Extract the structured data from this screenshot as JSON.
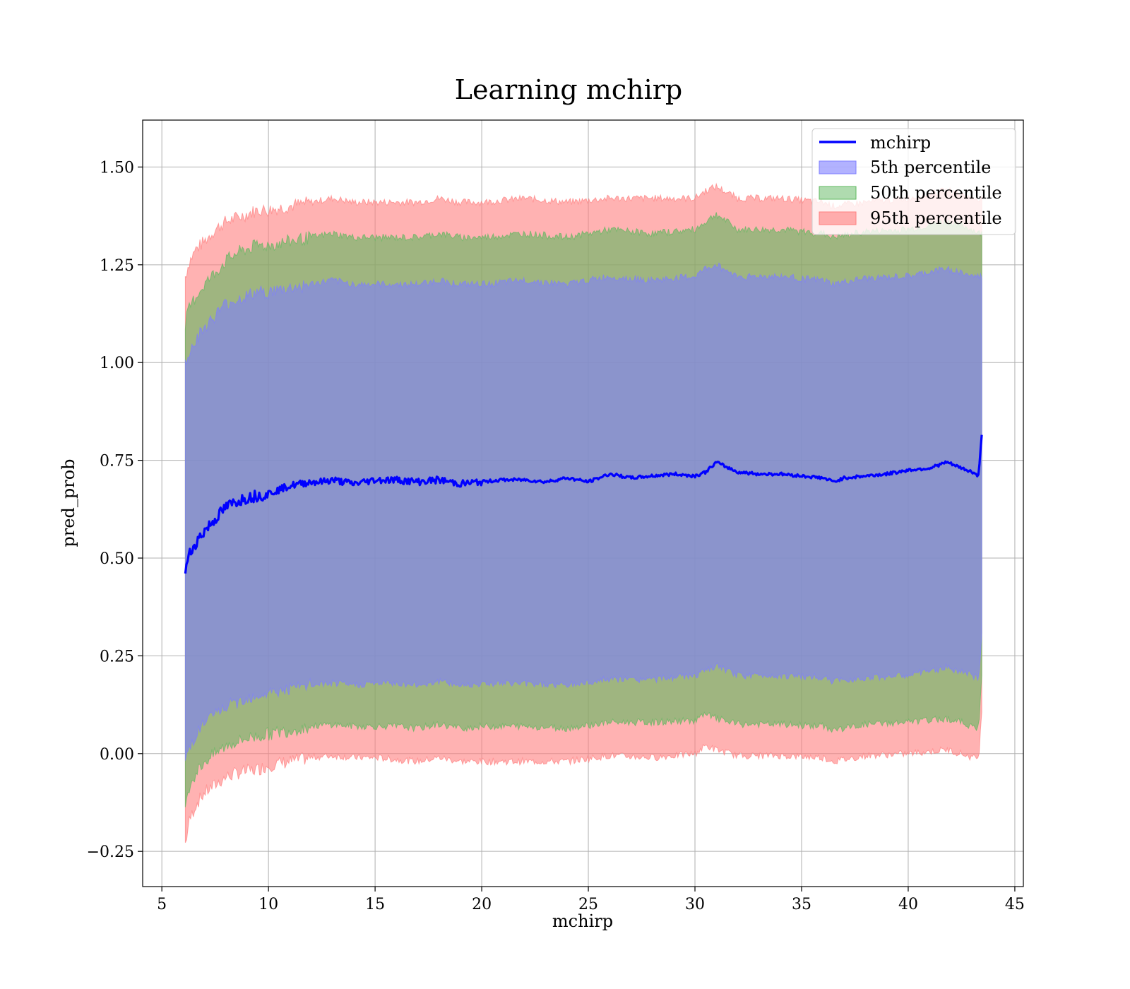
{
  "chart_data": {
    "type": "area",
    "title": "Learning mchirp",
    "xlabel": "mchirp",
    "ylabel": "pred_prob",
    "xlim": [
      4.1,
      45.4
    ],
    "ylim": [
      -0.34,
      1.62
    ],
    "xticks": [
      5,
      10,
      15,
      20,
      25,
      30,
      35,
      40,
      45
    ],
    "xtick_labels": [
      "5",
      "10",
      "15",
      "20",
      "25",
      "30",
      "35",
      "40",
      "45"
    ],
    "yticks": [
      -0.25,
      0.0,
      0.25,
      0.5,
      0.75,
      1.0,
      1.25,
      1.5
    ],
    "ytick_labels": [
      "−0.25",
      "0.00",
      "0.25",
      "0.50",
      "0.75",
      "1.00",
      "1.25",
      "1.50"
    ],
    "grid": true,
    "legend_position": "top-right",
    "series": [
      {
        "name": "mchirp",
        "kind": "line",
        "color": "#0000ff",
        "x": [
          6.1,
          6.3,
          6.6,
          7.0,
          7.5,
          8.0,
          8.5,
          9.0,
          9.5,
          10.0,
          10.5,
          11.0,
          11.5,
          12.0,
          12.5,
          13.0,
          13.5,
          14.0,
          15.0,
          16.0,
          17.0,
          18.0,
          19.0,
          20.0,
          21.0,
          22.0,
          23.0,
          24.0,
          25.0,
          26.0,
          27.0,
          28.0,
          29.0,
          30.0,
          30.5,
          31.0,
          32.0,
          33.0,
          34.0,
          35.0,
          36.0,
          36.5,
          37.0,
          38.0,
          39.0,
          40.0,
          41.0,
          41.8,
          42.5,
          43.0,
          43.3,
          43.45
        ],
        "y": [
          0.47,
          0.51,
          0.54,
          0.57,
          0.6,
          0.63,
          0.645,
          0.655,
          0.66,
          0.665,
          0.675,
          0.685,
          0.69,
          0.695,
          0.695,
          0.7,
          0.695,
          0.69,
          0.7,
          0.7,
          0.695,
          0.7,
          0.69,
          0.695,
          0.7,
          0.7,
          0.695,
          0.705,
          0.695,
          0.715,
          0.705,
          0.71,
          0.715,
          0.71,
          0.72,
          0.745,
          0.72,
          0.715,
          0.715,
          0.71,
          0.705,
          0.695,
          0.705,
          0.71,
          0.715,
          0.725,
          0.73,
          0.745,
          0.73,
          0.72,
          0.71,
          0.815
        ]
      },
      {
        "name": "5th percentile",
        "kind": "band",
        "color": "#7f7fff",
        "x": [
          6.1,
          6.3,
          6.6,
          7.0,
          7.5,
          8.0,
          8.5,
          9.0,
          9.5,
          10.0,
          11.0,
          12.0,
          13.0,
          14.0,
          15.0,
          16.0,
          17.0,
          18.0,
          19.0,
          20.0,
          22.0,
          24.0,
          26.0,
          28.0,
          30.0,
          30.5,
          31.0,
          32.0,
          34.0,
          36.0,
          36.5,
          38.0,
          40.0,
          41.8,
          42.5,
          43.0,
          43.3,
          43.45
        ],
        "lower": [
          -0.02,
          0.02,
          0.05,
          0.08,
          0.1,
          0.12,
          0.13,
          0.145,
          0.15,
          0.155,
          0.165,
          0.175,
          0.18,
          0.175,
          0.18,
          0.18,
          0.175,
          0.185,
          0.175,
          0.18,
          0.18,
          0.175,
          0.19,
          0.19,
          0.2,
          0.21,
          0.225,
          0.2,
          0.2,
          0.195,
          0.185,
          0.195,
          0.2,
          0.22,
          0.21,
          0.2,
          0.19,
          0.3
        ],
        "upper": [
          1.0,
          1.03,
          1.06,
          1.09,
          1.12,
          1.15,
          1.16,
          1.17,
          1.18,
          1.18,
          1.19,
          1.2,
          1.21,
          1.2,
          1.2,
          1.2,
          1.2,
          1.21,
          1.2,
          1.2,
          1.21,
          1.2,
          1.22,
          1.21,
          1.22,
          1.24,
          1.25,
          1.22,
          1.22,
          1.21,
          1.2,
          1.215,
          1.22,
          1.24,
          1.23,
          1.22,
          1.22,
          1.22
        ]
      },
      {
        "name": "50th percentile",
        "kind": "band",
        "color": "#5fb85f",
        "x": [
          6.1,
          6.3,
          6.6,
          7.0,
          7.5,
          8.0,
          8.5,
          9.0,
          9.5,
          10.0,
          11.0,
          12.0,
          13.0,
          14.0,
          15.0,
          16.0,
          17.0,
          18.0,
          19.0,
          20.0,
          22.0,
          24.0,
          26.0,
          28.0,
          30.0,
          30.5,
          31.0,
          32.0,
          34.0,
          36.0,
          36.5,
          38.0,
          40.0,
          41.8,
          42.5,
          43.0,
          43.3,
          43.45
        ],
        "lower": [
          -0.12,
          -0.08,
          -0.05,
          -0.02,
          0.0,
          0.02,
          0.03,
          0.04,
          0.045,
          0.05,
          0.06,
          0.07,
          0.075,
          0.07,
          0.07,
          0.07,
          0.065,
          0.075,
          0.065,
          0.07,
          0.07,
          0.065,
          0.08,
          0.08,
          0.085,
          0.1,
          0.09,
          0.075,
          0.075,
          0.07,
          0.06,
          0.075,
          0.08,
          0.09,
          0.08,
          0.07,
          0.06,
          0.2
        ],
        "upper": [
          1.1,
          1.14,
          1.17,
          1.2,
          1.23,
          1.26,
          1.28,
          1.29,
          1.3,
          1.3,
          1.31,
          1.32,
          1.33,
          1.32,
          1.32,
          1.32,
          1.32,
          1.33,
          1.32,
          1.32,
          1.33,
          1.32,
          1.34,
          1.33,
          1.34,
          1.36,
          1.38,
          1.34,
          1.34,
          1.33,
          1.32,
          1.335,
          1.34,
          1.36,
          1.35,
          1.34,
          1.33,
          1.33
        ]
      },
      {
        "name": "95th percentile",
        "kind": "band",
        "color": "#ff7f7f",
        "x": [
          6.1,
          6.3,
          6.6,
          7.0,
          7.5,
          8.0,
          8.5,
          9.0,
          9.5,
          10.0,
          11.0,
          12.0,
          13.0,
          14.0,
          15.0,
          16.0,
          17.0,
          18.0,
          19.0,
          20.0,
          22.0,
          24.0,
          26.0,
          28.0,
          30.0,
          30.5,
          31.0,
          32.0,
          34.0,
          36.0,
          36.5,
          38.0,
          40.0,
          41.8,
          42.5,
          43.0,
          43.3,
          43.45
        ],
        "lower": [
          -0.23,
          -0.17,
          -0.13,
          -0.1,
          -0.08,
          -0.06,
          -0.05,
          -0.045,
          -0.04,
          -0.03,
          -0.02,
          -0.01,
          -0.005,
          -0.01,
          -0.01,
          -0.015,
          -0.02,
          -0.01,
          -0.02,
          -0.02,
          -0.02,
          -0.02,
          -0.005,
          -0.01,
          0.0,
          0.02,
          0.01,
          -0.005,
          -0.005,
          -0.01,
          -0.02,
          -0.005,
          0.0,
          0.01,
          0.0,
          -0.01,
          -0.01,
          0.1
        ],
        "upper": [
          1.22,
          1.26,
          1.29,
          1.31,
          1.34,
          1.36,
          1.37,
          1.38,
          1.39,
          1.39,
          1.4,
          1.41,
          1.42,
          1.41,
          1.41,
          1.41,
          1.41,
          1.42,
          1.41,
          1.41,
          1.42,
          1.41,
          1.42,
          1.42,
          1.42,
          1.44,
          1.45,
          1.42,
          1.42,
          1.41,
          1.4,
          1.41,
          1.42,
          1.44,
          1.43,
          1.42,
          1.42,
          1.42
        ]
      }
    ]
  }
}
